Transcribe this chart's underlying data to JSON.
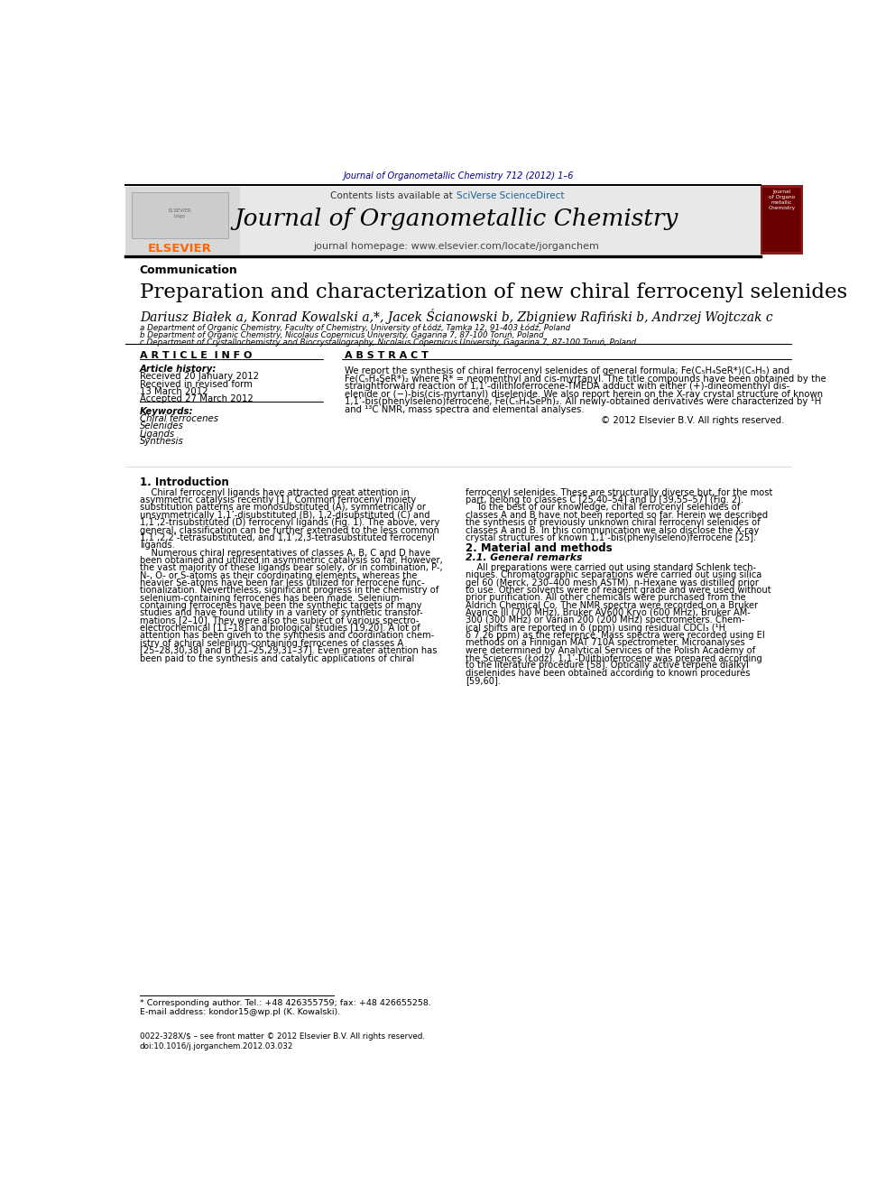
{
  "page_width": 9.92,
  "page_height": 13.23,
  "bg_color": "#ffffff",
  "journal_ref_text": "Journal of Organometallic Chemistry 712 (2012) 1–6",
  "journal_ref_color": "#00008B",
  "header_bg": "#e8e8e8",
  "contents_text": "Contents lists available at ",
  "sciverse_text": "SciVerse ScienceDirect",
  "sciverse_color": "#1a6496",
  "journal_title": "Journal of Organometallic Chemistry",
  "homepage_text": "journal homepage: www.elsevier.com/locate/jorganchem",
  "elsevier_color": "#FF6600",
  "elsevier_text": "ELSEVIER",
  "section_label": "Communication",
  "paper_title": "Preparation and characterization of new chiral ferrocenyl selenides",
  "authors": "Dariusz Białek a, Konrad Kowalski a,*, Jacek Ścianowski b, Zbigniew Rafiński b, Andrzej Wojtczak c",
  "affil_a": "a Department of Organic Chemistry, Faculty of Chemistry, University of Łódź, Tamka 12, 91-403 Łódź, Poland",
  "affil_b": "b Department of Organic Chemistry, Nicolaus Copernicus University, Gagarina 7, 87-100 Toruń, Poland",
  "affil_c": "c Department of Crystallochemistry and Biocrystallography, Nicolaus Copernicus University, Gagarina 7, 87-100 Toruń, Poland",
  "article_info_title": "A R T I C L E  I N F O",
  "abstract_title": "A B S T R A C T",
  "article_history_label": "Article history:",
  "received_1": "Received 20 January 2012",
  "received_revised": "Received in revised form",
  "revised_date": "13 March 2012",
  "accepted": "Accepted 27 March 2012",
  "keywords_label": "Keywords:",
  "keyword_1": "Chiral ferrocenes",
  "keyword_2": "Selenides",
  "keyword_3": "Ligands",
  "keyword_4": "Synthesis",
  "copyright_text": "© 2012 Elsevier B.V. All rights reserved.",
  "intro_title": "1. Introduction",
  "mat_methods_title": "2. Material and methods",
  "general_remarks_title": "2.1. General remarks",
  "footnote_star": "* Corresponding author. Tel.: +48 426355759; fax: +48 426655258.",
  "footnote_email": "E-mail address: kondor15@wp.pl (K. Kowalski).",
  "issn_text": "0022-328X/$ – see front matter © 2012 Elsevier B.V. All rights reserved.",
  "doi_text": "doi:10.1016/j.jorganchem.2012.03.032"
}
